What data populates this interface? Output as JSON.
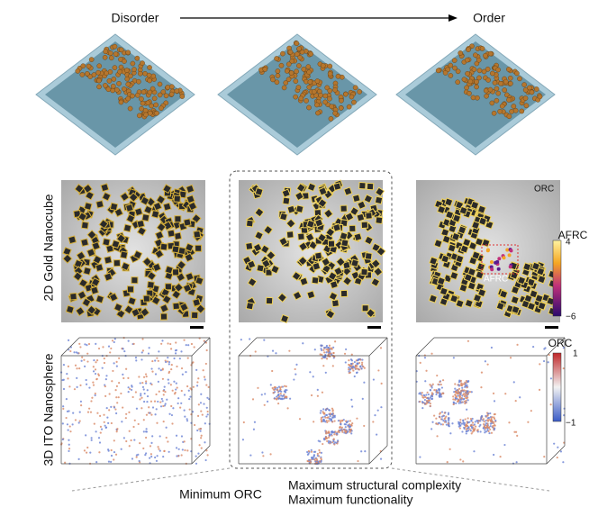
{
  "header": {
    "start": "Disorder",
    "end": "Order"
  },
  "rows": [
    {
      "label": "2D Gold Nanocube"
    },
    {
      "label": "3D ITO Nanosphere"
    }
  ],
  "annotations": {
    "orc_panel": "ORC",
    "afrc_region": "AFRC"
  },
  "colorbars": [
    {
      "title": "AFRC",
      "max": "4",
      "min": "−6"
    },
    {
      "title": "ORC",
      "max": "1",
      "min": "−1"
    }
  ],
  "footer": {
    "left": "Minimum ORC",
    "right": [
      "Maximum structural complexity",
      "Maximum functionality"
    ]
  }
}
